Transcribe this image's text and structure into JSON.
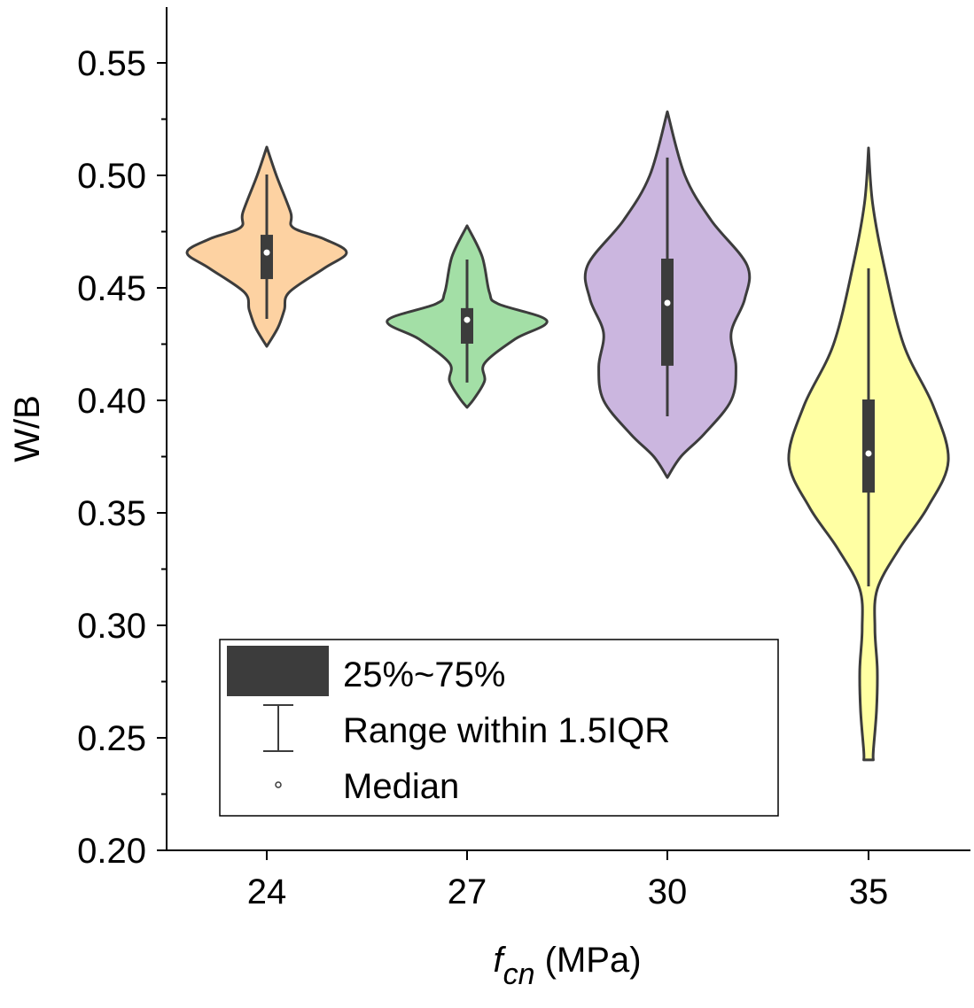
{
  "chart_data": {
    "type": "violin",
    "title": "",
    "xlabel": {
      "main": "f",
      "sub": "cn",
      "unit": " (MPa)"
    },
    "ylabel": "W/B",
    "ylim": [
      0.2,
      0.575
    ],
    "yticks": [
      "0.20",
      "0.25",
      "0.30",
      "0.35",
      "0.40",
      "0.45",
      "0.50",
      "0.55"
    ],
    "categories": [
      "24",
      "27",
      "30",
      "35"
    ],
    "colors": {
      "outline": "#3c3c3c",
      "box": "#3c3c3c"
    },
    "series": [
      {
        "name": "24",
        "color": "#fdd2a2",
        "min": 0.424,
        "max": 0.5126,
        "q1": 0.4539,
        "q3": 0.4736,
        "median": 0.4657,
        "whisker_low": 0.4362,
        "whisker_high": 0.5004,
        "density": [
          [
            0.5126,
            0
          ],
          [
            0.5,
            0.12
          ],
          [
            0.4835,
            0.3
          ],
          [
            0.4768,
            0.33
          ],
          [
            0.4717,
            0.72
          ],
          [
            0.4657,
            1
          ],
          [
            0.4587,
            0.72
          ],
          [
            0.448,
            0.28
          ],
          [
            0.4402,
            0.22
          ],
          [
            0.4323,
            0.14
          ],
          [
            0.424,
            0
          ]
        ]
      },
      {
        "name": "27",
        "color": "#a3dfa6",
        "min": 0.3969,
        "max": 0.4776,
        "q1": 0.4252,
        "q3": 0.441,
        "median": 0.4358,
        "whisker_low": 0.4079,
        "whisker_high": 0.4626,
        "density": [
          [
            0.4776,
            0
          ],
          [
            0.4638,
            0.19
          ],
          [
            0.448,
            0.28
          ],
          [
            0.4429,
            0.39
          ],
          [
            0.4354,
            1
          ],
          [
            0.4272,
            0.6
          ],
          [
            0.4165,
            0.22
          ],
          [
            0.4087,
            0.22
          ],
          [
            0.4008,
            0.09
          ],
          [
            0.3969,
            0
          ]
        ]
      },
      {
        "name": "30",
        "color": "#cbb6df",
        "min": 0.3657,
        "max": 0.5283,
        "q1": 0.4154,
        "q3": 0.463,
        "median": 0.4433,
        "whisker_low": 0.3929,
        "whisker_high": 0.5079,
        "density": [
          [
            0.5283,
            0
          ],
          [
            0.5,
            0.22
          ],
          [
            0.48,
            0.55
          ],
          [
            0.46,
            1
          ],
          [
            0.445,
            0.97
          ],
          [
            0.43,
            0.8
          ],
          [
            0.415,
            0.86
          ],
          [
            0.4,
            0.8
          ],
          [
            0.385,
            0.46
          ],
          [
            0.375,
            0.17
          ],
          [
            0.3657,
            0
          ]
        ]
      },
      {
        "name": "35",
        "color": "#ffffa3",
        "min": 0.2402,
        "max": 0.5122,
        "q1": 0.359,
        "q3": 0.4004,
        "median": 0.3764,
        "whisker_low": 0.3173,
        "whisker_high": 0.4587,
        "density": [
          [
            0.5122,
            0
          ],
          [
            0.4878,
            0.05
          ],
          [
            0.4606,
            0.19
          ],
          [
            0.4248,
            0.44
          ],
          [
            0.3976,
            0.81
          ],
          [
            0.3732,
            1
          ],
          [
            0.3524,
            0.74
          ],
          [
            0.3343,
            0.39
          ],
          [
            0.3161,
            0.11
          ],
          [
            0.2984,
            0.08
          ],
          [
            0.2803,
            0.11
          ],
          [
            0.2622,
            0.1
          ],
          [
            0.2441,
            0.06
          ],
          [
            0.2402,
            0.06
          ]
        ]
      }
    ],
    "legend": {
      "placement": "bottom-left",
      "items": [
        "25%~75%",
        "Range within 1.5IQR",
        "Median"
      ]
    }
  }
}
